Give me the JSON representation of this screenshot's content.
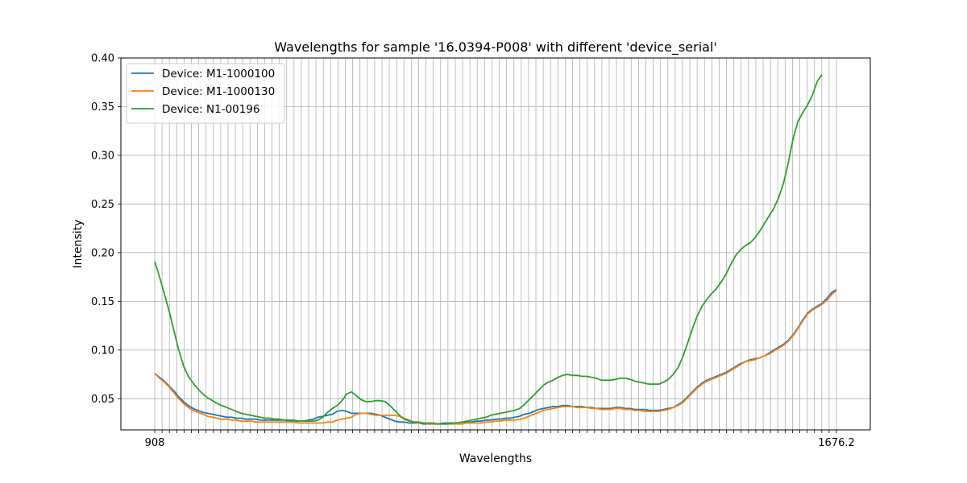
{
  "chart_data": {
    "type": "line",
    "title": "Wavelengths for sample '16.0394-P008' with different 'device_serial'",
    "xlabel": "Wavelengths",
    "ylabel": "Intensity",
    "ylim": [
      0.018,
      0.4
    ],
    "yticks": [
      0.05,
      0.1,
      0.15,
      0.2,
      0.25,
      0.3,
      0.35,
      0.4
    ],
    "ytick_labels": [
      "0.05",
      "0.10",
      "0.15",
      "0.20",
      "0.25",
      "0.30",
      "0.35",
      "0.40"
    ],
    "grid": true,
    "legend_position": "top-left",
    "x_first_label": "908",
    "x_last_label": "1676.2",
    "series": [
      {
        "name": "Device: M1-1000100",
        "color": "#1f77b4",
        "values": [
          0.076,
          0.072,
          0.068,
          0.063,
          0.058,
          0.052,
          0.047,
          0.043,
          0.04,
          0.038,
          0.036,
          0.035,
          0.034,
          0.033,
          0.032,
          0.031,
          0.031,
          0.03,
          0.03,
          0.029,
          0.029,
          0.029,
          0.028,
          0.028,
          0.028,
          0.028,
          0.028,
          0.028,
          0.027,
          0.027,
          0.027,
          0.027,
          0.028,
          0.029,
          0.031,
          0.032,
          0.033,
          0.034,
          0.037,
          0.038,
          0.037,
          0.035,
          0.035,
          0.035,
          0.035,
          0.035,
          0.034,
          0.033,
          0.031,
          0.029,
          0.027,
          0.026,
          0.026,
          0.025,
          0.025,
          0.025,
          0.024,
          0.024,
          0.024,
          0.024,
          0.025,
          0.025,
          0.025,
          0.025,
          0.026,
          0.026,
          0.026,
          0.027,
          0.027,
          0.028,
          0.028,
          0.029,
          0.029,
          0.03,
          0.03,
          0.031,
          0.032,
          0.034,
          0.035,
          0.037,
          0.039,
          0.04,
          0.041,
          0.042,
          0.042,
          0.043,
          0.043,
          0.042,
          0.042,
          0.042,
          0.041,
          0.041,
          0.04,
          0.04,
          0.04,
          0.04,
          0.041,
          0.041,
          0.04,
          0.04,
          0.039,
          0.039,
          0.039,
          0.038,
          0.038,
          0.038,
          0.039,
          0.04,
          0.041,
          0.044,
          0.047,
          0.052,
          0.057,
          0.062,
          0.066,
          0.069,
          0.071,
          0.073,
          0.075,
          0.077,
          0.08,
          0.083,
          0.086,
          0.088,
          0.09,
          0.091,
          0.092,
          0.094,
          0.097,
          0.1,
          0.103,
          0.106,
          0.11,
          0.116,
          0.123,
          0.131,
          0.138,
          0.142,
          0.145,
          0.148,
          0.153,
          0.159,
          0.162
        ]
      },
      {
        "name": "Device: M1-1000130",
        "color": "#ff7f0e",
        "values": [
          0.076,
          0.071,
          0.067,
          0.062,
          0.056,
          0.05,
          0.045,
          0.041,
          0.038,
          0.036,
          0.034,
          0.032,
          0.031,
          0.03,
          0.029,
          0.029,
          0.028,
          0.028,
          0.027,
          0.027,
          0.027,
          0.026,
          0.026,
          0.026,
          0.026,
          0.026,
          0.026,
          0.026,
          0.026,
          0.026,
          0.025,
          0.025,
          0.025,
          0.025,
          0.025,
          0.025,
          0.026,
          0.026,
          0.028,
          0.029,
          0.03,
          0.031,
          0.034,
          0.035,
          0.035,
          0.034,
          0.033,
          0.033,
          0.033,
          0.033,
          0.033,
          0.032,
          0.03,
          0.028,
          0.026,
          0.025,
          0.025,
          0.024,
          0.024,
          0.024,
          0.024,
          0.024,
          0.024,
          0.024,
          0.024,
          0.025,
          0.025,
          0.025,
          0.025,
          0.026,
          0.026,
          0.027,
          0.027,
          0.028,
          0.028,
          0.028,
          0.029,
          0.03,
          0.032,
          0.034,
          0.036,
          0.038,
          0.039,
          0.04,
          0.041,
          0.042,
          0.042,
          0.042,
          0.041,
          0.041,
          0.041,
          0.04,
          0.04,
          0.039,
          0.039,
          0.039,
          0.04,
          0.04,
          0.039,
          0.039,
          0.038,
          0.038,
          0.037,
          0.037,
          0.037,
          0.037,
          0.038,
          0.039,
          0.041,
          0.043,
          0.046,
          0.051,
          0.056,
          0.061,
          0.065,
          0.068,
          0.07,
          0.072,
          0.074,
          0.076,
          0.079,
          0.082,
          0.085,
          0.088,
          0.089,
          0.09,
          0.092,
          0.094,
          0.096,
          0.099,
          0.102,
          0.105,
          0.109,
          0.115,
          0.122,
          0.13,
          0.137,
          0.141,
          0.144,
          0.147,
          0.151,
          0.157,
          0.161
        ]
      },
      {
        "name": "Device: N1-00196",
        "color": "#2ca02c",
        "values": [
          0.191,
          0.175,
          0.158,
          0.14,
          0.12,
          0.1,
          0.084,
          0.073,
          0.066,
          0.06,
          0.055,
          0.051,
          0.048,
          0.045,
          0.043,
          0.041,
          0.039,
          0.037,
          0.035,
          0.034,
          0.033,
          0.032,
          0.031,
          0.03,
          0.03,
          0.029,
          0.029,
          0.028,
          0.028,
          0.028,
          0.027,
          0.027,
          0.027,
          0.027,
          0.028,
          0.031,
          0.036,
          0.04,
          0.043,
          0.048,
          0.055,
          0.057,
          0.053,
          0.049,
          0.047,
          0.047,
          0.048,
          0.048,
          0.047,
          0.043,
          0.038,
          0.033,
          0.029,
          0.027,
          0.026,
          0.026,
          0.025,
          0.025,
          0.025,
          0.024,
          0.024,
          0.024,
          0.025,
          0.025,
          0.026,
          0.027,
          0.028,
          0.029,
          0.03,
          0.031,
          0.033,
          0.034,
          0.035,
          0.036,
          0.037,
          0.038,
          0.04,
          0.044,
          0.049,
          0.054,
          0.059,
          0.064,
          0.067,
          0.069,
          0.072,
          0.074,
          0.075,
          0.074,
          0.074,
          0.073,
          0.073,
          0.072,
          0.071,
          0.069,
          0.069,
          0.069,
          0.07,
          0.071,
          0.071,
          0.07,
          0.068,
          0.067,
          0.066,
          0.065,
          0.065,
          0.065,
          0.067,
          0.07,
          0.075,
          0.082,
          0.093,
          0.107,
          0.122,
          0.135,
          0.145,
          0.152,
          0.158,
          0.163,
          0.17,
          0.178,
          0.188,
          0.197,
          0.203,
          0.207,
          0.21,
          0.215,
          0.222,
          0.23,
          0.238,
          0.246,
          0.257,
          0.272,
          0.293,
          0.318,
          0.335,
          0.344,
          0.352,
          0.362,
          0.376,
          0.383
        ]
      }
    ]
  }
}
